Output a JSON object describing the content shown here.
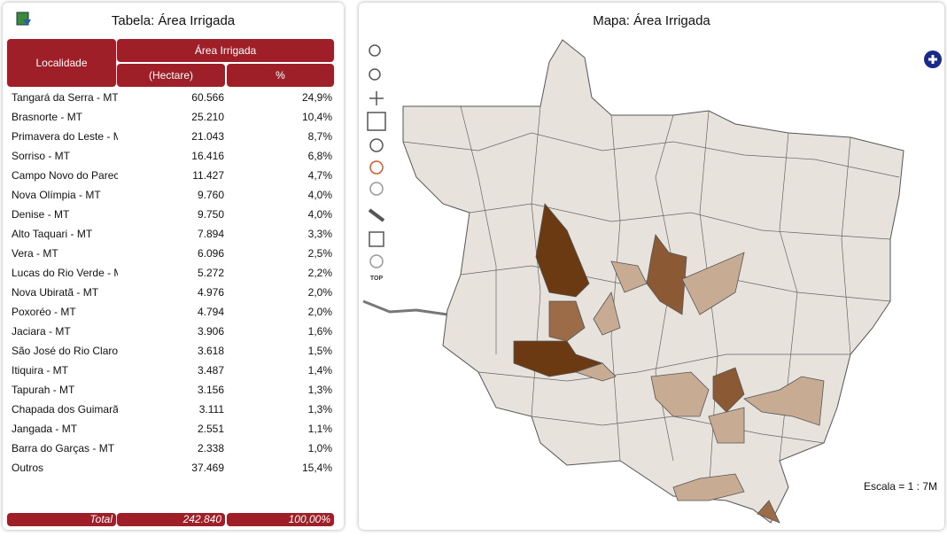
{
  "table_panel": {
    "title": "Tabela: Área Irrigada",
    "header": {
      "locality": "Localidade",
      "group": "Área Irrigada",
      "hectare": "(Hectare)",
      "percent": "%"
    },
    "rows": [
      [
        "Tangará da Serra - MT",
        "60.566",
        "24,9%"
      ],
      [
        "Brasnorte - MT",
        "25.210",
        "10,4%"
      ],
      [
        "Primavera do Leste - M",
        "21.043",
        "8,7%"
      ],
      [
        "Sorriso - MT",
        "16.416",
        "6,8%"
      ],
      [
        "Campo Novo do Parec",
        "11.427",
        "4,7%"
      ],
      [
        "Nova Olímpia - MT",
        "9.760",
        "4,0%"
      ],
      [
        "Denise - MT",
        "9.750",
        "4,0%"
      ],
      [
        "Alto Taquari - MT",
        "7.894",
        "3,3%"
      ],
      [
        "Vera - MT",
        "6.096",
        "2,5%"
      ],
      [
        "Lucas do Rio Verde - M",
        "5.272",
        "2,2%"
      ],
      [
        "Nova Ubiratã - MT",
        "4.976",
        "2,0%"
      ],
      [
        "Poxoréo - MT",
        "4.794",
        "2,0%"
      ],
      [
        "Jaciara - MT",
        "3.906",
        "1,6%"
      ],
      [
        "São José do Rio Claro",
        "3.618",
        "1,5%"
      ],
      [
        "Itiquira - MT",
        "3.487",
        "1,4%"
      ],
      [
        "Tapurah - MT",
        "3.156",
        "1,3%"
      ],
      [
        "Chapada dos Guimarã",
        "3.111",
        "1,3%"
      ],
      [
        "Jangada - MT",
        "2.551",
        "1,1%"
      ],
      [
        "Barra do Garças - MT",
        "2.338",
        "1,0%"
      ],
      [
        "Outros",
        "37.469",
        "15,4%"
      ]
    ],
    "total": [
      "Total",
      "242.840",
      "100,00%"
    ]
  },
  "map_panel": {
    "title": "Mapa: Área Irrigada",
    "tool_label": "TOP",
    "scale": "Escala = 1 : 7M"
  }
}
